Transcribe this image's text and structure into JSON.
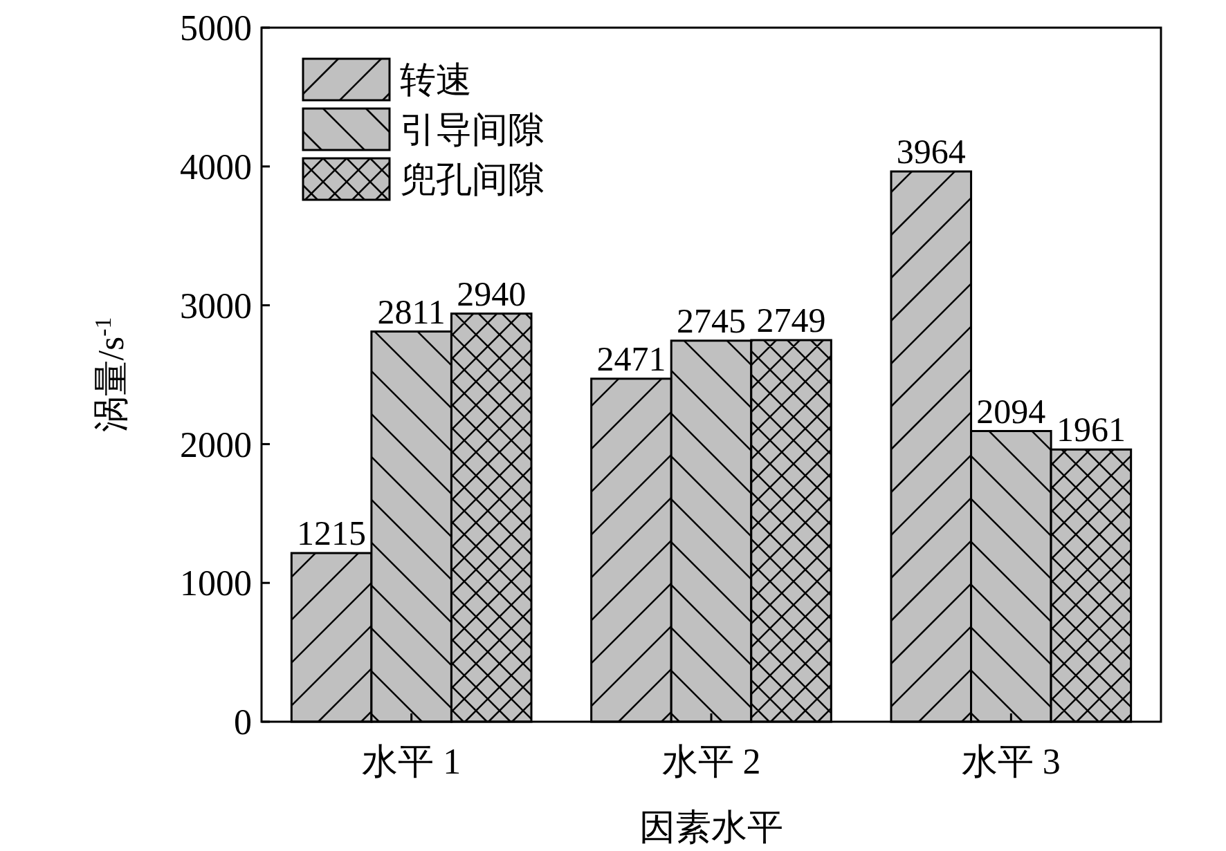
{
  "chart_data": {
    "type": "bar",
    "xlabel": "因素水平",
    "ylabel": "涡量/s$^{-1}$",
    "categories": [
      "水平 1",
      "水平 2",
      "水平 3"
    ],
    "series": [
      {
        "name": "转速",
        "color": "#c0c0c0",
        "values": [
          1215,
          2471,
          3964
        ]
      },
      {
        "name": "引导间隙",
        "color": "#c0c0c0",
        "values": [
          2811,
          2745,
          2094
        ]
      },
      {
        "name": "兜孔间隙",
        "color": "#c0c0c0",
        "values": [
          2940,
          2749,
          1961
        ]
      }
    ],
    "ylim": [
      0,
      5000
    ],
    "yticks": [
      0,
      1000,
      2000,
      3000,
      4000,
      5000
    ],
    "data_labels": true,
    "legend": "top left",
    "grid": false
  }
}
